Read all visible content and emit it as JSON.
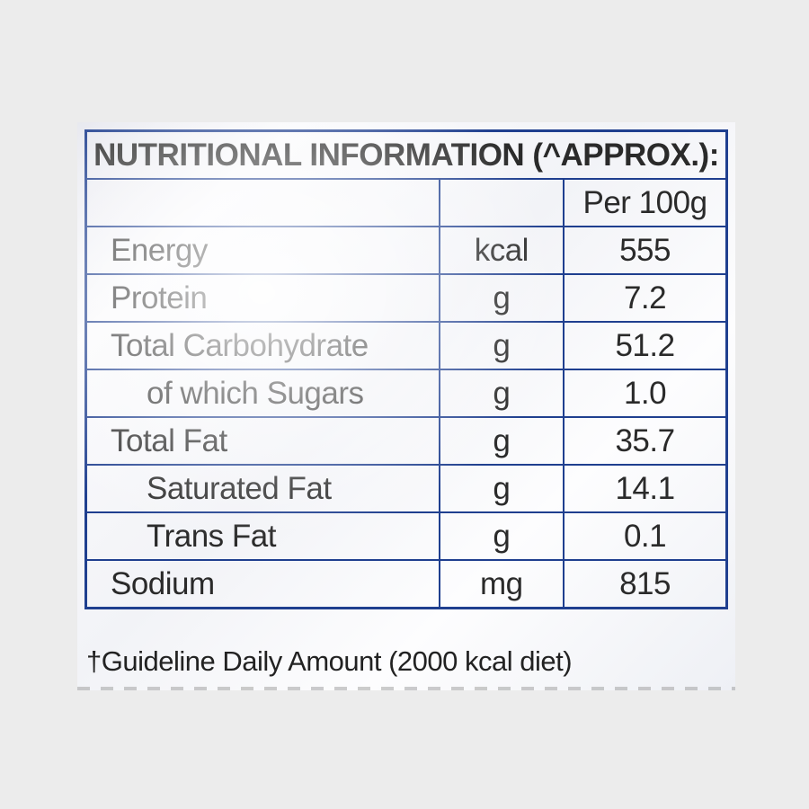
{
  "title": "NUTRITIONAL INFORMATION (^APPROX.):",
  "column_header": "Per 100g",
  "rows": [
    {
      "name": "Energy",
      "unit": "kcal",
      "value": "555"
    },
    {
      "name": "Protein",
      "unit": "g",
      "value": "7.2"
    },
    {
      "name": "Total Carbohydrate",
      "unit": "g",
      "value": "51.2"
    },
    {
      "name": "of which Sugars",
      "unit": "g",
      "value": "1.0"
    },
    {
      "name": "Total Fat",
      "unit": "g",
      "value": "35.7"
    },
    {
      "name": "Saturated Fat",
      "unit": "g",
      "value": "14.1"
    },
    {
      "name": "Trans Fat",
      "unit": "g",
      "value": "0.1"
    },
    {
      "name": "Sodium",
      "unit": "mg",
      "value": "815"
    }
  ],
  "footnote": "†Guideline Daily Amount (2000 kcal diet)",
  "colors": {
    "border": "#1f3f8f",
    "background": "#ececec"
  }
}
